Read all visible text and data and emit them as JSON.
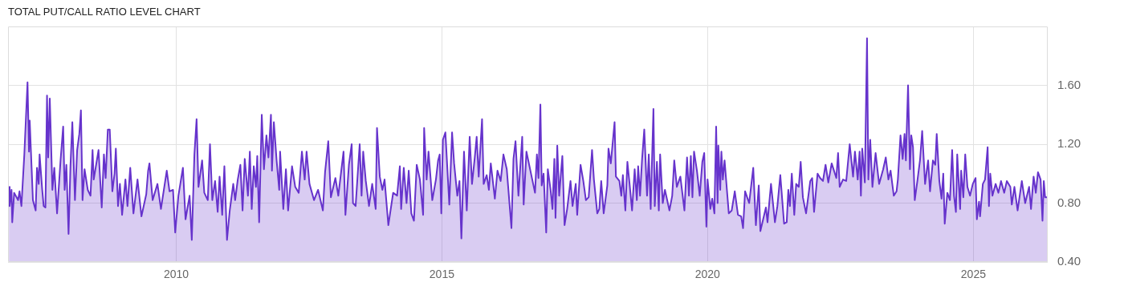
{
  "chart_data": {
    "type": "area",
    "title": "TOTAL PUT/CALL RATIO LEVEL CHART",
    "xlim": [
      "2006-11-02",
      "2026-05-27"
    ],
    "xticks": [
      {
        "value": "2010-01-01",
        "label": "2010"
      },
      {
        "value": "2015-01-01",
        "label": "2015"
      },
      {
        "value": "2020-01-01",
        "label": "2020"
      },
      {
        "value": "2025-01-01",
        "label": "2025"
      }
    ],
    "ylim": [
      0.4,
      2.0
    ],
    "yticks": [
      {
        "value": 0.4,
        "label": "0.40"
      },
      {
        "value": 0.8,
        "label": "0.80"
      },
      {
        "value": 1.2,
        "label": "1.20"
      },
      {
        "value": 1.6,
        "label": "1.60"
      }
    ],
    "grid": true,
    "series": [
      {
        "color": "#6633cc",
        "x": [
          "2006-11-08",
          "2006-11-13",
          "2006-11-26",
          "2006-12-01",
          "2006-12-14",
          "2007-01-10",
          "2007-01-20",
          "2007-02-02",
          "2007-02-22",
          "2007-03-16",
          "2007-03-26",
          "2007-03-31",
          "2007-04-13",
          "2007-04-22",
          "2007-05-11",
          "2007-05-20",
          "2007-06-01",
          "2007-06-07",
          "2007-06-25",
          "2007-07-05",
          "2007-07-17",
          "2007-07-28",
          "2007-08-05",
          "2007-08-16",
          "2007-09-03",
          "2007-09-16",
          "2007-10-05",
          "2007-10-29",
          "2007-11-16",
          "2007-11-26",
          "2007-12-08",
          "2007-12-23",
          "2008-01-05",
          "2008-01-18",
          "2008-02-05",
          "2008-02-20",
          "2008-03-06",
          "2008-03-17",
          "2008-03-28",
          "2008-04-11",
          "2008-05-03",
          "2008-05-22",
          "2008-06-05",
          "2008-06-13",
          "2008-07-16",
          "2008-08-07",
          "2008-08-22",
          "2008-09-03",
          "2008-09-18",
          "2008-10-01",
          "2008-10-19",
          "2008-11-03",
          "2008-11-12",
          "2008-11-27",
          "2008-12-10",
          "2008-12-25",
          "2009-01-17",
          "2009-01-31",
          "2009-02-19",
          "2009-03-13",
          "2009-04-10",
          "2009-05-07",
          "2009-06-09",
          "2009-06-22",
          "2009-07-01",
          "2009-07-23",
          "2009-08-25",
          "2009-09-18",
          "2009-10-28",
          "2009-11-16",
          "2009-12-10",
          "2009-12-25",
          "2010-01-16",
          "2010-02-16",
          "2010-03-06",
          "2010-04-03",
          "2010-04-18",
          "2010-05-06",
          "2010-05-21",
          "2010-06-03",
          "2010-06-28",
          "2010-07-13",
          "2010-08-06",
          "2010-08-21",
          "2010-09-06",
          "2010-09-25",
          "2010-10-13",
          "2010-10-26",
          "2010-11-13",
          "2010-11-28",
          "2010-12-16",
          "2011-01-04",
          "2011-01-28",
          "2011-02-10",
          "2011-02-28",
          "2011-03-18",
          "2011-04-02",
          "2011-04-17",
          "2011-05-09",
          "2011-05-22",
          "2011-06-04",
          "2011-06-18",
          "2011-07-03",
          "2011-07-12",
          "2011-07-25",
          "2011-08-12",
          "2011-08-27",
          "2011-09-13",
          "2011-09-27",
          "2011-10-14",
          "2011-10-21",
          "2011-11-03",
          "2011-11-22",
          "2011-12-10",
          "2011-12-16",
          "2012-01-07",
          "2012-01-25",
          "2012-02-09",
          "2012-03-07",
          "2012-03-29",
          "2012-04-22",
          "2012-05-14",
          "2012-06-02",
          "2012-06-15",
          "2012-07-05",
          "2012-08-05",
          "2012-09-02",
          "2012-10-05",
          "2012-10-20",
          "2012-11-11",
          "2012-11-29",
          "2012-12-30",
          "2013-01-19",
          "2013-02-24",
          "2013-03-09",
          "2013-04-02",
          "2013-04-21",
          "2013-04-30",
          "2013-05-18",
          "2013-06-15",
          "2013-06-28",
          "2013-07-09",
          "2013-07-27",
          "2013-08-18",
          "2013-09-09",
          "2013-10-03",
          "2013-10-12",
          "2013-10-31",
          "2013-11-18",
          "2013-12-03",
          "2013-12-29",
          "2014-01-31",
          "2014-02-27",
          "2014-03-18",
          "2014-03-27",
          "2014-04-14",
          "2014-05-03",
          "2014-05-18",
          "2014-06-05",
          "2014-06-23",
          "2014-07-12",
          "2014-08-03",
          "2014-08-25",
          "2014-09-01",
          "2014-09-18",
          "2014-10-01",
          "2014-10-27",
          "2014-11-21",
          "2014-12-06",
          "2014-12-17",
          "2014-12-28",
          "2015-01-08",
          "2015-01-25",
          "2015-02-21",
          "2015-03-12",
          "2015-03-26",
          "2015-04-17",
          "2015-05-02",
          "2015-05-15",
          "2015-06-02",
          "2015-06-21",
          "2015-07-11",
          "2015-07-27",
          "2015-08-15",
          "2015-08-28",
          "2015-09-11",
          "2015-10-04",
          "2015-10-15",
          "2015-11-05",
          "2015-11-20",
          "2015-12-03",
          "2015-12-31",
          "2016-01-18",
          "2016-02-09",
          "2016-02-28",
          "2016-03-22",
          "2016-04-23",
          "2016-05-07",
          "2016-05-21",
          "2016-06-10",
          "2016-07-06",
          "2016-07-16",
          "2016-08-04",
          "2016-09-13",
          "2016-10-02",
          "2016-10-15",
          "2016-10-26",
          "2016-11-08",
          "2016-11-17",
          "2016-11-30",
          "2016-12-18",
          "2016-12-29",
          "2017-01-17",
          "2017-01-30",
          "2017-02-12",
          "2017-02-20",
          "2017-03-04",
          "2017-03-17",
          "2017-03-30",
          "2017-04-08",
          "2017-04-23",
          "2017-05-11",
          "2017-06-03",
          "2017-06-17",
          "2017-07-09",
          "2017-07-19",
          "2017-08-11",
          "2017-08-30",
          "2017-09-17",
          "2017-10-06",
          "2017-10-29",
          "2017-11-11",
          "2017-12-04",
          "2017-12-18",
          "2017-12-31",
          "2018-01-17",
          "2018-02-11",
          "2018-02-19",
          "2018-03-07",
          "2018-04-02",
          "2018-04-11",
          "2018-05-05",
          "2018-05-18",
          "2018-05-29",
          "2018-06-15",
          "2018-06-29",
          "2018-07-14",
          "2018-07-31",
          "2018-08-18",
          "2018-09-02",
          "2018-09-11",
          "2018-09-24",
          "2018-10-08",
          "2018-10-23",
          "2018-11-11",
          "2018-11-23",
          "2018-12-06",
          "2018-12-25",
          "2019-01-03",
          "2019-01-18",
          "2019-01-31",
          "2019-02-09",
          "2019-02-27",
          "2019-03-14",
          "2019-04-14",
          "2019-05-03",
          "2019-05-17",
          "2019-06-04",
          "2019-06-28",
          "2019-07-26",
          "2019-08-13",
          "2019-08-26",
          "2019-09-08",
          "2019-09-19",
          "2019-09-30",
          "2019-10-20",
          "2019-11-08",
          "2019-11-26",
          "2019-12-09",
          "2019-12-24",
          "2020-01-01",
          "2020-01-20",
          "2020-02-02",
          "2020-02-17",
          "2020-02-29",
          "2020-03-10",
          "2020-03-15",
          "2020-03-28",
          "2020-04-05",
          "2020-04-15",
          "2020-04-27",
          "2020-05-13",
          "2020-05-26",
          "2020-06-15",
          "2020-07-06",
          "2020-07-28",
          "2020-08-19",
          "2020-09-01",
          "2020-09-15",
          "2020-10-13",
          "2020-11-10",
          "2020-11-28",
          "2020-12-18",
          "2020-12-29",
          "2021-01-17",
          "2021-02-05",
          "2021-02-16",
          "2021-03-12",
          "2021-04-08",
          "2021-04-25",
          "2021-05-15",
          "2021-06-10",
          "2021-06-28",
          "2021-07-09",
          "2021-07-20",
          "2021-08-02",
          "2021-08-19",
          "2021-09-01",
          "2021-09-19",
          "2021-10-02",
          "2021-10-17",
          "2021-11-08",
          "2021-12-07",
          "2021-12-20",
          "2022-01-02",
          "2022-01-26",
          "2022-02-13",
          "2022-03-04",
          "2022-03-22",
          "2022-04-10",
          "2022-05-03",
          "2022-06-04",
          "2022-06-16",
          "2022-06-27",
          "2022-07-20",
          "2022-08-11",
          "2022-09-04",
          "2022-09-27",
          "2022-10-10",
          "2022-10-29",
          "2022-11-11",
          "2022-11-20",
          "2022-11-29",
          "2022-12-17",
          "2023-01-01",
          "2023-01-10",
          "2023-01-23",
          "2023-02-07",
          "2023-03-01",
          "2023-03-25",
          "2023-04-22",
          "2023-05-10",
          "2023-05-28",
          "2023-06-12",
          "2023-07-04",
          "2023-07-23",
          "2023-08-01",
          "2023-08-19",
          "2023-09-03",
          "2023-09-16",
          "2023-09-25",
          "2023-10-10",
          "2023-10-23",
          "2023-11-01",
          "2023-11-13",
          "2023-11-25",
          "2023-12-13",
          "2023-12-31",
          "2024-01-15",
          "2024-02-04",
          "2024-02-25",
          "2024-03-09",
          "2024-03-29",
          "2024-04-14",
          "2024-04-24",
          "2024-05-12",
          "2024-05-27",
          "2024-06-08",
          "2024-06-18",
          "2024-07-06",
          "2024-07-24",
          "2024-08-08",
          "2024-08-21",
          "2024-09-03",
          "2024-09-12",
          "2024-10-02",
          "2024-10-09",
          "2024-10-24",
          "2024-11-06",
          "2024-11-21",
          "2024-12-09",
          "2024-12-28",
          "2025-01-16",
          "2025-01-25",
          "2025-02-09",
          "2025-02-16",
          "2025-03-07",
          "2025-03-22",
          "2025-04-09",
          "2025-04-18",
          "2025-04-27",
          "2025-05-12",
          "2025-06-03",
          "2025-06-22",
          "2025-07-10",
          "2025-08-01",
          "2025-08-19",
          "2025-09-12",
          "2025-09-22",
          "2025-10-10",
          "2025-11-01",
          "2025-11-30",
          "2025-12-23",
          "2026-01-19",
          "2026-02-01",
          "2026-02-19",
          "2026-03-06",
          "2026-03-21",
          "2026-04-08",
          "2026-04-21",
          "2026-04-30",
          "2026-05-09",
          "2026-05-26"
        ],
        "values": [
          0.91,
          0.78,
          0.89,
          0.67,
          0.87,
          0.82,
          0.88,
          0.78,
          1.13,
          1.62,
          1.15,
          1.36,
          1.04,
          0.82,
          0.75,
          1.04,
          0.93,
          1.13,
          0.89,
          0.78,
          0.77,
          1.53,
          1.11,
          1.51,
          0.89,
          1.04,
          0.73,
          1.09,
          1.32,
          0.89,
          1.06,
          0.59,
          1.05,
          1.35,
          0.82,
          1.16,
          1.27,
          1.43,
          0.82,
          1.03,
          0.89,
          0.85,
          1.16,
          0.96,
          1.16,
          0.77,
          1.13,
          0.97,
          1.3,
          1.3,
          0.88,
          1.0,
          1.17,
          0.78,
          0.93,
          0.72,
          0.96,
          0.78,
          1.04,
          0.73,
          0.96,
          0.71,
          0.86,
          1.02,
          1.07,
          0.82,
          0.93,
          0.76,
          1.02,
          0.88,
          0.89,
          0.6,
          0.85,
          1.04,
          0.69,
          0.85,
          0.55,
          1.13,
          1.37,
          0.91,
          1.09,
          0.87,
          0.82,
          1.2,
          0.82,
          0.95,
          0.74,
          0.98,
          0.72,
          1.05,
          0.55,
          0.75,
          0.93,
          0.82,
          0.96,
          1.06,
          0.75,
          1.1,
          0.85,
          1.15,
          0.76,
          1.05,
          0.91,
          1.12,
          0.67,
          1.4,
          1.03,
          1.26,
          1.11,
          1.4,
          1.02,
          1.35,
          1.09,
          0.89,
          1.15,
          0.76,
          1.03,
          0.75,
          1.05,
          0.91,
          0.87,
          1.15,
          0.96,
          1.15,
          0.93,
          0.82,
          0.89,
          0.75,
          1.01,
          1.22,
          0.84,
          0.97,
          0.85,
          1.15,
          0.72,
          1.06,
          1.2,
          0.8,
          0.78,
          1.2,
          0.85,
          1.15,
          0.95,
          0.78,
          0.93,
          0.76,
          1.31,
          0.98,
          0.89,
          0.96,
          0.65,
          0.87,
          0.85,
          1.05,
          0.76,
          1.04,
          0.8,
          1.02,
          0.73,
          0.68,
          1.06,
          0.96,
          0.72,
          1.31,
          0.96,
          1.15,
          0.82,
          0.96,
          1.09,
          1.13,
          0.73,
          1.23,
          1.28,
          0.79,
          1.28,
          1.07,
          0.85,
          0.95,
          0.56,
          1.15,
          0.75,
          1.25,
          0.93,
          1.11,
          1.25,
          0.98,
          1.37,
          0.93,
          0.99,
          0.89,
          1.07,
          0.83,
          1.02,
          0.95,
          1.13,
          1.03,
          0.63,
          1.1,
          1.22,
          0.85,
          1.25,
          0.79,
          1.15,
          0.96,
          0.87,
          1.13,
          0.97,
          1.47,
          0.92,
          1.0,
          0.6,
          1.03,
          0.89,
          0.76,
          1.1,
          0.7,
          1.19,
          0.85,
          1.01,
          1.12,
          0.65,
          0.76,
          0.95,
          0.78,
          0.93,
          0.72,
          1.06,
          0.95,
          0.82,
          0.84,
          1.16,
          0.96,
          0.73,
          0.76,
          0.95,
          0.73,
          0.92,
          1.17,
          1.07,
          1.35,
          0.98,
          0.95,
          0.85,
          0.99,
          0.75,
          1.08,
          0.93,
          0.75,
          1.03,
          0.82,
          1.05,
          0.85,
          1.1,
          1.3,
          0.85,
          1.13,
          0.76,
          1.44,
          0.78,
          1.08,
          0.75,
          1.13,
          0.8,
          0.89,
          0.75,
          0.85,
          1.09,
          0.91,
          0.98,
          0.75,
          1.11,
          0.85,
          1.12,
          0.84,
          1.15,
          1.02,
          0.85,
          1.08,
          1.14,
          0.64,
          0.96,
          0.76,
          0.83,
          0.73,
          1.32,
          0.8,
          1.19,
          0.89,
          1.15,
          0.96,
          1.09,
          0.89,
          0.73,
          0.75,
          0.88,
          0.72,
          0.71,
          0.63,
          0.88,
          0.8,
          1.04,
          0.65,
          0.92,
          0.61,
          0.69,
          0.77,
          0.67,
          0.93,
          0.67,
          0.78,
          0.99,
          0.66,
          0.67,
          0.89,
          0.78,
          1.0,
          0.72,
          0.93,
          0.91,
          1.08,
          0.84,
          0.73,
          0.95,
          0.97,
          0.74,
          1.0,
          0.97,
          0.95,
          1.06,
          0.94,
          1.07,
          0.97,
          1.14,
          0.91,
          0.96,
          0.95,
          1.2,
          0.98,
          1.15,
          0.96,
          1.15,
          0.85,
          1.17,
          0.94,
          1.92,
          0.96,
          1.23,
          0.91,
          1.14,
          0.93,
          1.03,
          1.11,
          0.96,
          1.02,
          0.85,
          0.88,
          0.96,
          1.26,
          1.1,
          1.27,
          1.09,
          1.6,
          1.03,
          1.26,
          1.18,
          0.82,
          0.95,
          1.09,
          1.29,
          0.93,
          1.09,
          0.88,
          1.09,
          1.06,
          1.27,
          0.95,
          0.83,
          1.0,
          0.66,
          0.87,
          0.82,
          1.16,
          0.85,
          0.74,
          1.13,
          0.76,
          1.02,
          0.84,
          1.13,
          0.91,
          0.85,
          0.93,
          0.97,
          0.69,
          0.81,
          0.71,
          0.93,
          0.96,
          1.18,
          0.78,
          1.0,
          0.85,
          0.93,
          0.87,
          0.95,
          0.87,
          0.95,
          0.91,
          0.79,
          0.91,
          0.75,
          0.95,
          0.8,
          0.91,
          0.76,
          0.98,
          0.87,
          1.01,
          0.96,
          0.68,
          0.95,
          0.84,
          0.84
        ]
      }
    ]
  }
}
